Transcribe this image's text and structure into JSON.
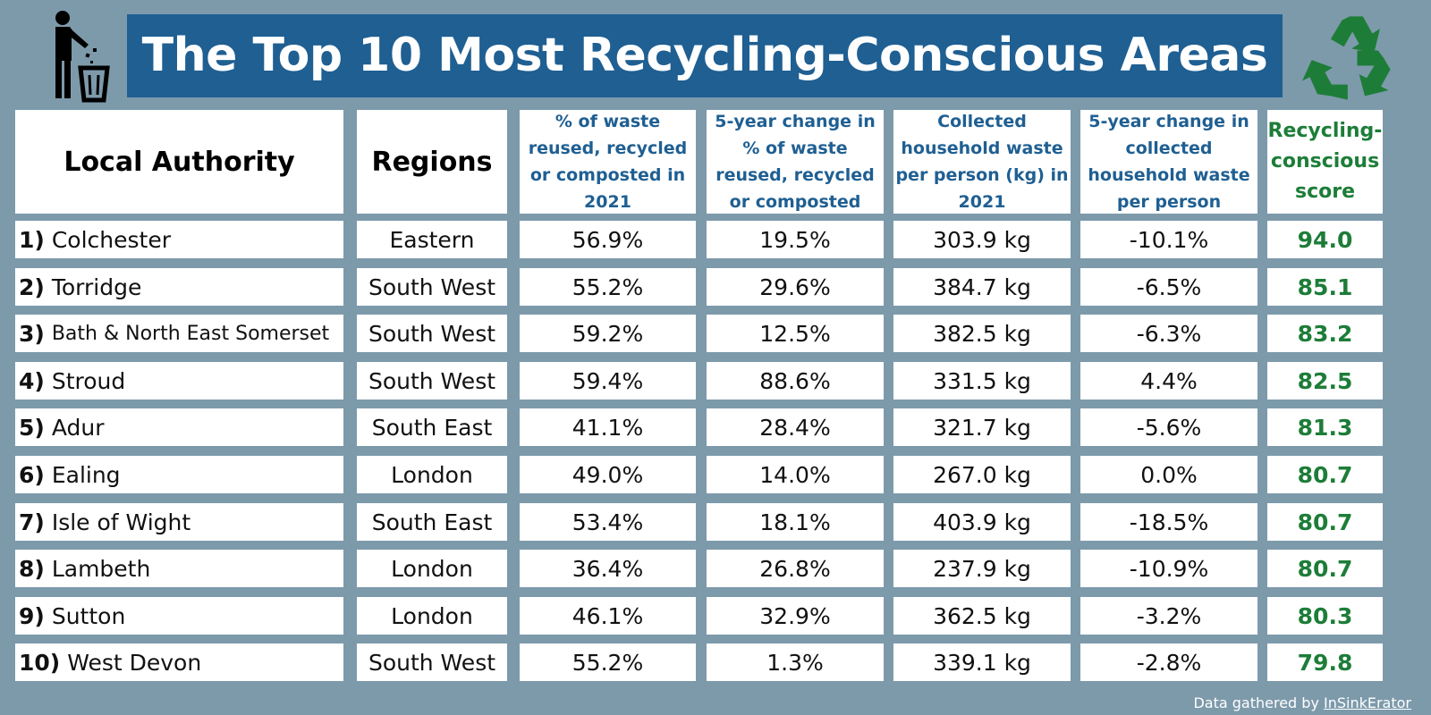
{
  "title": "The Top 10 Most Recycling-Conscious Areas",
  "icons": {
    "left": "waste-bin-icon",
    "right": "recycle-icon",
    "recycle_color": "#1d7d38"
  },
  "colors": {
    "background": "#7d9aab",
    "title_bg": "#1f5f92",
    "header_blue": "#1f5f92",
    "score_green": "#1d7d38"
  },
  "chart_data": {
    "type": "table",
    "title": "The Top 10 Most Recycling-Conscious Areas",
    "columns": [
      "Local Authority",
      "Regions",
      "% of waste reused, recycled or composted in 2021",
      "5-year change in % of waste reused, recycled or composted",
      "Collected household waste per person (kg) in 2021",
      "5-year change in collected household waste per person",
      "Recycling-conscious score"
    ],
    "rows": [
      {
        "rank": "1)",
        "authority": "Colchester",
        "region": "Eastern",
        "pct_2021": "56.9%",
        "change_pct": "19.5%",
        "waste_kg": "303.9 kg",
        "change_waste": "-10.1%",
        "score": "94.0"
      },
      {
        "rank": "2)",
        "authority": "Torridge",
        "region": "South West",
        "pct_2021": "55.2%",
        "change_pct": "29.6%",
        "waste_kg": "384.7 kg",
        "change_waste": "-6.5%",
        "score": "85.1"
      },
      {
        "rank": "3)",
        "authority": "Bath & North East Somerset",
        "region": "South West",
        "pct_2021": "59.2%",
        "change_pct": "12.5%",
        "waste_kg": "382.5 kg",
        "change_waste": "-6.3%",
        "score": "83.2"
      },
      {
        "rank": "4)",
        "authority": "Stroud",
        "region": "South West",
        "pct_2021": "59.4%",
        "change_pct": "88.6%",
        "waste_kg": "331.5 kg",
        "change_waste": "4.4%",
        "score": "82.5"
      },
      {
        "rank": "5)",
        "authority": "Adur",
        "region": "South East",
        "pct_2021": "41.1%",
        "change_pct": "28.4%",
        "waste_kg": "321.7 kg",
        "change_waste": "-5.6%",
        "score": "81.3"
      },
      {
        "rank": "6)",
        "authority": "Ealing",
        "region": "London",
        "pct_2021": "49.0%",
        "change_pct": "14.0%",
        "waste_kg": "267.0 kg",
        "change_waste": "0.0%",
        "score": "80.7"
      },
      {
        "rank": "7)",
        "authority": "Isle of Wight",
        "region": "South East",
        "pct_2021": "53.4%",
        "change_pct": "18.1%",
        "waste_kg": "403.9 kg",
        "change_waste": "-18.5%",
        "score": "80.7"
      },
      {
        "rank": "8)",
        "authority": "Lambeth",
        "region": "London",
        "pct_2021": "36.4%",
        "change_pct": "26.8%",
        "waste_kg": "237.9 kg",
        "change_waste": "-10.9%",
        "score": "80.7"
      },
      {
        "rank": "9)",
        "authority": "Sutton",
        "region": "London",
        "pct_2021": "46.1%",
        "change_pct": "32.9%",
        "waste_kg": "362.5 kg",
        "change_waste": "-3.2%",
        "score": "80.3"
      },
      {
        "rank": "10)",
        "authority": "West Devon",
        "region": "South West",
        "pct_2021": "55.2%",
        "change_pct": "1.3%",
        "waste_kg": "339.1 kg",
        "change_waste": "-2.8%",
        "score": "79.8"
      }
    ]
  },
  "footer": {
    "prefix": "Data gathered by ",
    "source": "InSinkErator"
  }
}
